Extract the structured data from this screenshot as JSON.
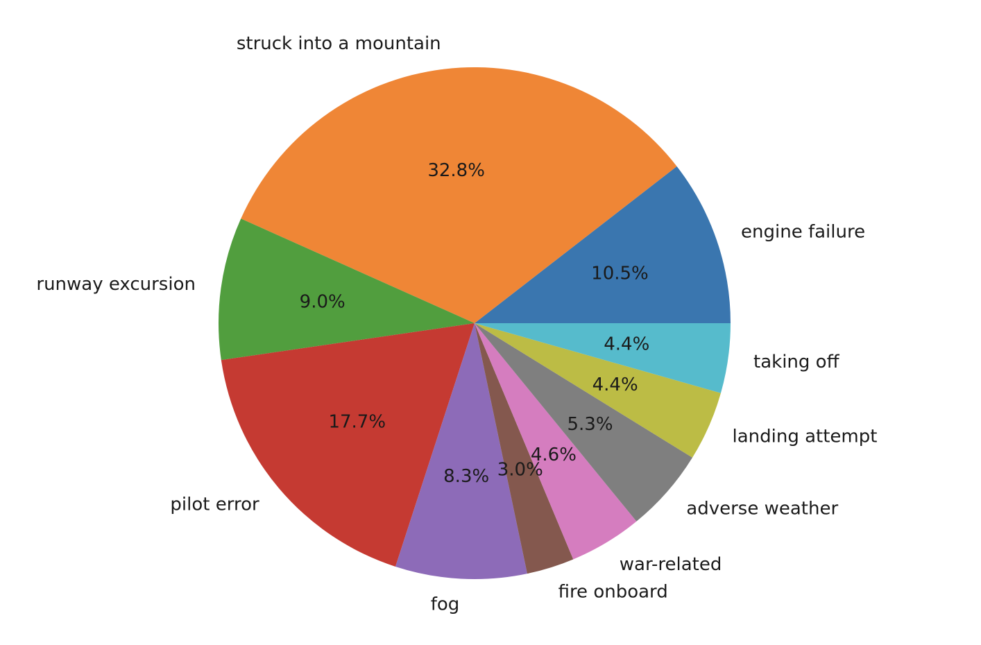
{
  "chart_data": {
    "type": "pie",
    "start_angle_deg": 0,
    "direction": "counterclockwise",
    "slices": [
      {
        "label": "engine failure",
        "value": 10.5,
        "pct_label": "10.5%",
        "color": "#3a76af"
      },
      {
        "label": "struck into a mountain",
        "value": 32.8,
        "pct_label": "32.8%",
        "color": "#ef8636"
      },
      {
        "label": "runway excursion",
        "value": 9.0,
        "pct_label": "9.0%",
        "color": "#519e3e"
      },
      {
        "label": "pilot error",
        "value": 17.7,
        "pct_label": "17.7%",
        "color": "#c53a32"
      },
      {
        "label": "fog",
        "value": 8.3,
        "pct_label": "8.3%",
        "color": "#8d6bb8"
      },
      {
        "label": "fire onboard",
        "value": 3.0,
        "pct_label": "3.0%",
        "color": "#84584e"
      },
      {
        "label": "war-related",
        "value": 4.6,
        "pct_label": "4.6%",
        "color": "#d57dbf"
      },
      {
        "label": "adverse weather",
        "value": 5.3,
        "pct_label": "5.3%",
        "color": "#7f7f7f"
      },
      {
        "label": "landing attempt",
        "value": 4.4,
        "pct_label": "4.4%",
        "color": "#bcbc45"
      },
      {
        "label": "taking off",
        "value": 4.4,
        "pct_label": "4.4%",
        "color": "#56bbcc"
      }
    ]
  }
}
